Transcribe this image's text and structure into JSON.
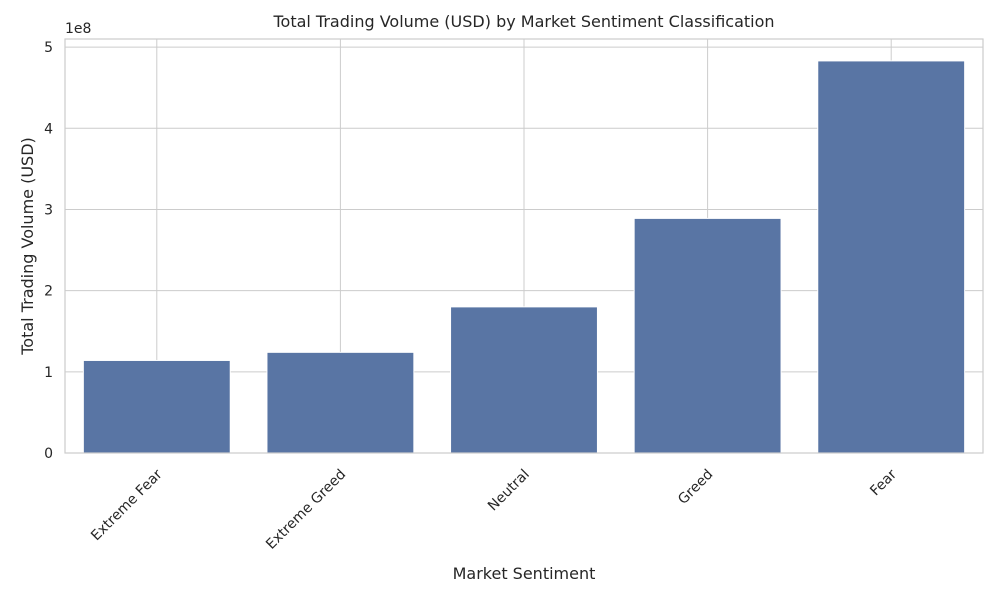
{
  "chart_data": {
    "type": "bar",
    "title": "Total Trading Volume (USD) by Market Sentiment Classification",
    "xlabel": "Market Sentiment",
    "ylabel": "Total Trading Volume (USD)",
    "offset_label": "1e8",
    "categories": [
      "Extreme Fear",
      "Extreme Greed",
      "Neutral",
      "Greed",
      "Fear"
    ],
    "values": [
      114000000,
      124000000,
      180000000,
      289000000,
      483000000
    ],
    "ylim": [
      0,
      510000000
    ],
    "yticks": [
      0,
      100000000,
      200000000,
      300000000,
      400000000,
      500000000
    ],
    "ytick_labels": [
      "0",
      "1",
      "2",
      "3",
      "4",
      "5"
    ],
    "bar_color": "#5975a4",
    "grid": true,
    "grid_color": "#cccccc"
  }
}
